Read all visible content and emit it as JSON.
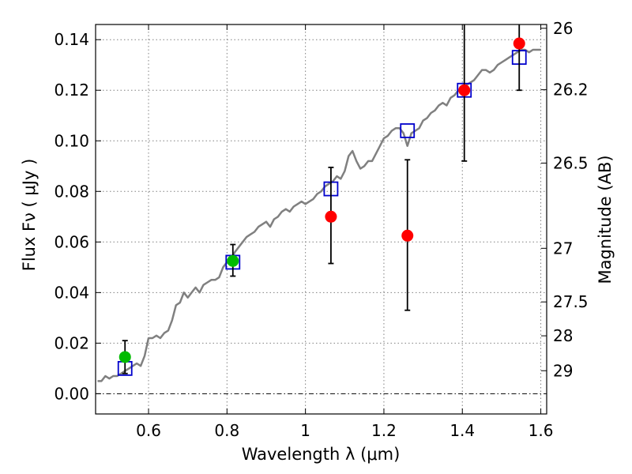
{
  "chart_data": {
    "type": "scatter",
    "xlabel": "Wavelength  λ (μm)",
    "ylabel": "Flux  Fν  ( μJy )",
    "ylabel_right": "Magnitude (AB)",
    "xlim": [
      0.465,
      1.615
    ],
    "ylim": [
      -0.008,
      0.146
    ],
    "grid": true,
    "x_ticks": [
      {
        "value": 0.6,
        "label": "0.6"
      },
      {
        "value": 0.8,
        "label": "0.8"
      },
      {
        "value": 1.0,
        "label": "1"
      },
      {
        "value": 1.2,
        "label": "1.2"
      },
      {
        "value": 1.4,
        "label": "1.4"
      },
      {
        "value": 1.6,
        "label": "1.6"
      }
    ],
    "y_ticks": [
      {
        "value": 0.0,
        "label": "0.00"
      },
      {
        "value": 0.02,
        "label": "0.02"
      },
      {
        "value": 0.04,
        "label": "0.04"
      },
      {
        "value": 0.06,
        "label": "0.06"
      },
      {
        "value": 0.08,
        "label": "0.08"
      },
      {
        "value": 0.1,
        "label": "0.10"
      },
      {
        "value": 0.12,
        "label": "0.12"
      },
      {
        "value": 0.14,
        "label": "0.14"
      }
    ],
    "right_ticks": [
      {
        "flux": 0.1445,
        "label": "26"
      },
      {
        "flux": 0.1202,
        "label": "26.2"
      },
      {
        "flux": 0.0912,
        "label": "26.5"
      },
      {
        "flux": 0.0575,
        "label": "27"
      },
      {
        "flux": 0.0363,
        "label": "27.5"
      },
      {
        "flux": 0.0229,
        "label": "28"
      },
      {
        "flux": 0.0091,
        "label": "29"
      }
    ],
    "series": [
      {
        "name": "model_spectrum",
        "kind": "line",
        "color": "#808080",
        "x": [
          0.47,
          0.48,
          0.49,
          0.5,
          0.51,
          0.52,
          0.53,
          0.54,
          0.55,
          0.56,
          0.57,
          0.58,
          0.59,
          0.6,
          0.61,
          0.62,
          0.63,
          0.64,
          0.65,
          0.66,
          0.67,
          0.68,
          0.69,
          0.7,
          0.71,
          0.72,
          0.73,
          0.74,
          0.75,
          0.76,
          0.77,
          0.78,
          0.79,
          0.8,
          0.81,
          0.82,
          0.83,
          0.84,
          0.85,
          0.86,
          0.87,
          0.88,
          0.89,
          0.9,
          0.91,
          0.92,
          0.93,
          0.94,
          0.95,
          0.96,
          0.97,
          0.98,
          0.99,
          1.0,
          1.01,
          1.02,
          1.03,
          1.04,
          1.05,
          1.06,
          1.07,
          1.08,
          1.09,
          1.1,
          1.11,
          1.12,
          1.13,
          1.14,
          1.15,
          1.16,
          1.17,
          1.18,
          1.19,
          1.2,
          1.21,
          1.22,
          1.23,
          1.24,
          1.25,
          1.26,
          1.27,
          1.28,
          1.29,
          1.3,
          1.31,
          1.32,
          1.33,
          1.34,
          1.35,
          1.36,
          1.37,
          1.38,
          1.39,
          1.4,
          1.41,
          1.42,
          1.43,
          1.44,
          1.45,
          1.46,
          1.47,
          1.48,
          1.49,
          1.5,
          1.51,
          1.52,
          1.53,
          1.54,
          1.55,
          1.56,
          1.57,
          1.58,
          1.59,
          1.6
        ],
        "y": [
          0.005,
          0.005,
          0.007,
          0.006,
          0.007,
          0.007,
          0.008,
          0.009,
          0.01,
          0.011,
          0.012,
          0.011,
          0.015,
          0.022,
          0.022,
          0.023,
          0.022,
          0.024,
          0.025,
          0.029,
          0.035,
          0.036,
          0.04,
          0.038,
          0.04,
          0.042,
          0.04,
          0.043,
          0.044,
          0.045,
          0.045,
          0.046,
          0.05,
          0.052,
          0.053,
          0.056,
          0.058,
          0.06,
          0.062,
          0.063,
          0.064,
          0.066,
          0.067,
          0.068,
          0.066,
          0.069,
          0.07,
          0.072,
          0.073,
          0.072,
          0.074,
          0.075,
          0.076,
          0.075,
          0.076,
          0.077,
          0.079,
          0.08,
          0.082,
          0.083,
          0.084,
          0.086,
          0.085,
          0.088,
          0.094,
          0.096,
          0.092,
          0.089,
          0.09,
          0.092,
          0.092,
          0.095,
          0.098,
          0.101,
          0.102,
          0.104,
          0.105,
          0.105,
          0.103,
          0.098,
          0.103,
          0.104,
          0.105,
          0.108,
          0.109,
          0.111,
          0.112,
          0.114,
          0.115,
          0.114,
          0.117,
          0.118,
          0.12,
          0.121,
          0.122,
          0.123,
          0.124,
          0.126,
          0.128,
          0.128,
          0.127,
          0.128,
          0.13,
          0.131,
          0.132,
          0.133,
          0.134,
          0.135,
          0.136,
          0.136,
          0.135,
          0.136,
          0.136,
          0.136
        ]
      },
      {
        "name": "model_photometry",
        "kind": "open-square",
        "color": "#0000cc",
        "x": [
          0.54,
          0.815,
          1.065,
          1.26,
          1.405,
          1.545
        ],
        "y": [
          0.01,
          0.052,
          0.081,
          0.104,
          0.12,
          0.133
        ]
      },
      {
        "name": "observed_green",
        "kind": "point-errorbar",
        "color": "#00bb00",
        "x": [
          0.54,
          0.815
        ],
        "y": [
          0.0145,
          0.0525
        ],
        "err_low": [
          0.0065,
          0.006
        ],
        "err_high": [
          0.0065,
          0.0065
        ]
      },
      {
        "name": "observed_red",
        "kind": "point-errorbar",
        "color": "#ff0000",
        "x": [
          1.065,
          1.26,
          1.405,
          1.545
        ],
        "y": [
          0.07,
          0.0625,
          0.12,
          0.1385
        ],
        "err_low": [
          0.0185,
          0.0295,
          0.028,
          0.0185
        ],
        "err_high": [
          0.0195,
          0.03,
          0.028,
          0.0185
        ]
      }
    ]
  }
}
